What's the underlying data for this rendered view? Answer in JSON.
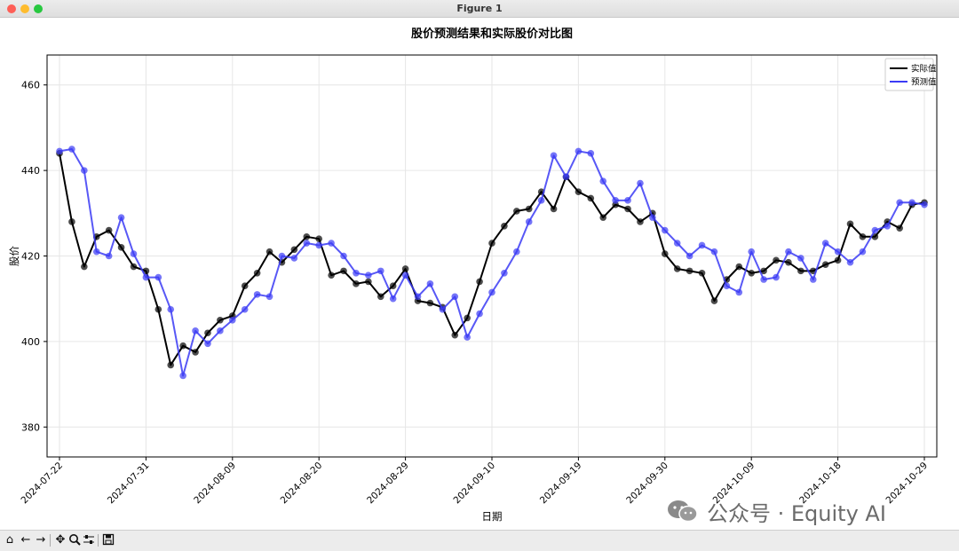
{
  "window": {
    "title": "Figure 1"
  },
  "toolbar": {
    "buttons": [
      "home-icon",
      "back-icon",
      "forward-icon",
      "pan-icon",
      "zoom-icon",
      "configure-icon",
      "save-icon"
    ]
  },
  "watermark": {
    "text": "公众号 · Equity AI"
  },
  "colors": {
    "actual": "#000000",
    "predicted": "#3b3bf5",
    "grid": "#e6e6e6"
  },
  "chart_data": {
    "type": "line",
    "title": "股价预测结果和实际股价对比图",
    "xlabel": "日期",
    "ylabel": "股价",
    "ylim": [
      373,
      467
    ],
    "yticks": [
      380,
      400,
      420,
      440,
      460
    ],
    "xtick_labels": [
      "2024-07-22",
      "2024-07-31",
      "2024-08-09",
      "2024-08-20",
      "2024-08-29",
      "2024-09-10",
      "2024-09-19",
      "2024-09-30",
      "2024-10-09",
      "2024-10-18",
      "2024-10-29"
    ],
    "xtick_index": [
      0,
      7,
      14,
      21,
      28,
      35,
      42,
      49,
      56,
      63,
      70
    ],
    "grid": true,
    "legend_position": "top-right",
    "series": [
      {
        "name": "实际值",
        "values": [
          444,
          428,
          417.5,
          424.5,
          426,
          422,
          417.5,
          416.5,
          407.5,
          394.5,
          399,
          397.5,
          402,
          405,
          406,
          413,
          416,
          421,
          418.5,
          421.5,
          424.5,
          424,
          415.5,
          416.5,
          413.5,
          414,
          410.5,
          413,
          417,
          409.5,
          409,
          408,
          401.5,
          405.5,
          414,
          423,
          427,
          430.5,
          431,
          435,
          431,
          438.5,
          435,
          433.5,
          429,
          432,
          431,
          428,
          430,
          420.5,
          417,
          416.5,
          416,
          409.5,
          414.5,
          417.5,
          416,
          416.5,
          419,
          418.5,
          416.5,
          416.5,
          418,
          419,
          427.5,
          424.5,
          424.5,
          428,
          426.5,
          432,
          432.5
        ]
      },
      {
        "name": "预测值",
        "values": [
          444.5,
          445,
          440,
          421,
          420,
          429,
          420.5,
          415,
          415,
          407.5,
          392,
          402.5,
          399.5,
          402.5,
          405,
          407.5,
          411,
          410.5,
          420,
          419.5,
          423,
          422.5,
          423,
          420,
          416,
          415.5,
          416.5,
          410,
          415.5,
          410.5,
          413.5,
          407.5,
          410.5,
          401,
          406.5,
          411.5,
          416,
          421,
          428,
          433,
          443.5,
          438.5,
          444.5,
          444,
          437.5,
          433,
          433,
          437,
          429,
          426,
          423,
          420,
          422.5,
          421,
          413,
          411.5,
          421,
          414.5,
          415,
          421,
          419.5,
          414.5,
          423,
          421,
          418.5,
          421,
          426,
          427,
          432.5,
          432.5,
          432
        ]
      }
    ]
  }
}
